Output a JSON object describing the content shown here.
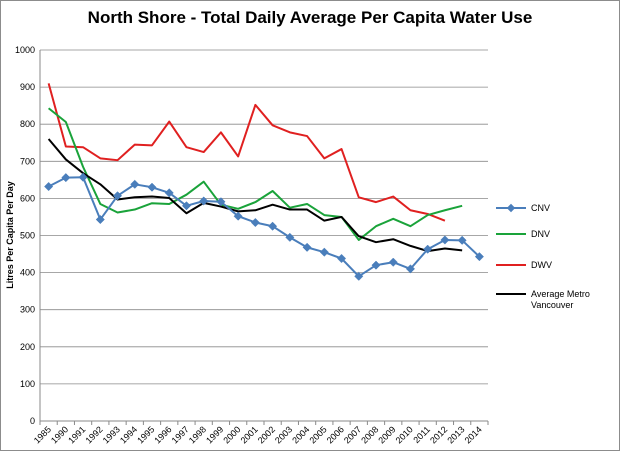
{
  "chart_data": {
    "type": "line",
    "title": "North Shore - Total Daily Average Per Capita Water Use",
    "xlabel": "",
    "ylabel": "Litres Per Capita Per Day",
    "ylim": [
      0,
      1000
    ],
    "yticks": [
      0,
      100,
      200,
      300,
      400,
      500,
      600,
      700,
      800,
      900,
      1000
    ],
    "grid": true,
    "legend_position": "right",
    "categories": [
      "1985",
      "1990",
      "1991",
      "1992",
      "1993",
      "1994",
      "1995",
      "1996",
      "1997",
      "1998",
      "1999",
      "2000",
      "2001",
      "2002",
      "2003",
      "2004",
      "2005",
      "2006",
      "2007",
      "2008",
      "2009",
      "2010",
      "2011",
      "2012",
      "2013",
      "2014"
    ],
    "series": [
      {
        "name": "CNV",
        "color": "#4a7ebb",
        "marker": "diamond",
        "values": [
          632,
          656,
          657,
          543,
          607,
          638,
          630,
          615,
          580,
          593,
          591,
          552,
          535,
          525,
          495,
          468,
          455,
          438,
          390,
          420,
          428,
          410,
          463,
          488,
          487,
          443
        ]
      },
      {
        "name": "DNV",
        "color": "#1aa33a",
        "marker": "none",
        "values": [
          843,
          806,
          685,
          585,
          562,
          570,
          587,
          585,
          610,
          645,
          583,
          572,
          590,
          620,
          575,
          585,
          555,
          550,
          488,
          525,
          545,
          525,
          555,
          568,
          580,
          null
        ]
      },
      {
        "name": "DWV",
        "color": "#e02020",
        "marker": "none",
        "values": [
          910,
          740,
          738,
          708,
          703,
          745,
          743,
          807,
          738,
          725,
          778,
          713,
          852,
          797,
          778,
          768,
          708,
          733,
          603,
          590,
          605,
          568,
          558,
          540,
          null,
          null
        ]
      },
      {
        "name": "Average Metro Vancouver",
        "color": "#000000",
        "marker": "none",
        "values": [
          760,
          705,
          668,
          638,
          597,
          603,
          605,
          601,
          560,
          588,
          578,
          565,
          568,
          583,
          570,
          570,
          540,
          550,
          498,
          482,
          490,
          472,
          458,
          465,
          460,
          null
        ]
      }
    ]
  }
}
